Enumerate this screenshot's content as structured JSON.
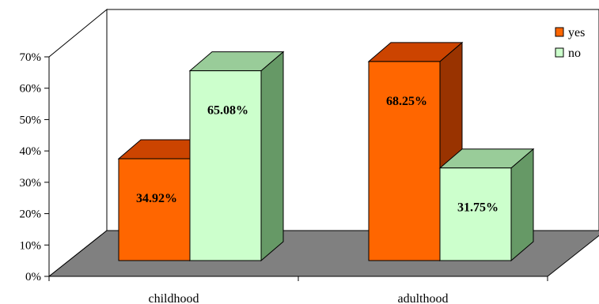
{
  "chart_data": {
    "type": "bar",
    "categories": [
      "childhood",
      "adulthood"
    ],
    "series": [
      {
        "name": "yes",
        "values": [
          34.92,
          68.25
        ],
        "labels": [
          "34.92%",
          "68.25%"
        ],
        "color": "#ff6600"
      },
      {
        "name": "no",
        "values": [
          65.08,
          31.75
        ],
        "labels": [
          "65.08%",
          "31.75%"
        ],
        "color": "#ccffcc"
      }
    ],
    "y_ticks": [
      "0%",
      "10%",
      "20%",
      "30%",
      "40%",
      "50%",
      "60%",
      "70%"
    ],
    "ylim": [
      0,
      70
    ],
    "legend_position": "top-right",
    "style": "3d-clustered",
    "floor_color": "#808080",
    "side_colors": {
      "yes": "#993300",
      "no": "#669966"
    },
    "top_colors": {
      "yes": "#cc4400",
      "no": "#99cc99"
    }
  }
}
